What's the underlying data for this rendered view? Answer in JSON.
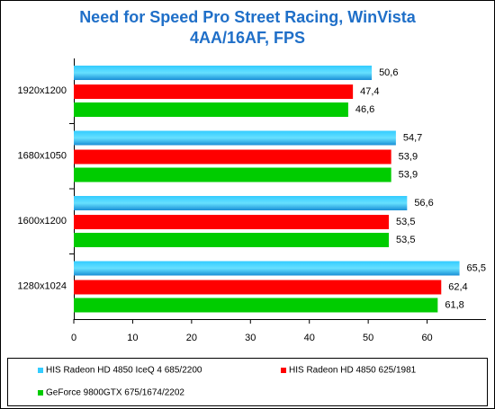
{
  "chart_data": {
    "type": "hbar",
    "title": [
      "Need for Speed Pro Street Racing, WinVista",
      "4AA/16AF, FPS"
    ],
    "categories": [
      "1920x1200",
      "1680x1050",
      "1600x1200",
      "1280x1024"
    ],
    "series": [
      {
        "name": "HIS Radeon HD 4850 IceQ 4 685/2200",
        "color": "#33ccff",
        "values": [
          50.6,
          54.7,
          56.6,
          65.5
        ],
        "value_labels": [
          "50,6",
          "54,7",
          "56,6",
          "65,5"
        ]
      },
      {
        "name": "HIS Radeon HD 4850 625/1981",
        "color": "#ff0000",
        "values": [
          47.4,
          53.9,
          53.5,
          62.4
        ],
        "value_labels": [
          "47,4",
          "53,9",
          "53,5",
          "62,4"
        ]
      },
      {
        "name": "GeForce 9800GTX 675/1674/2202",
        "color": "#00cc00",
        "values": [
          46.6,
          53.9,
          53.5,
          61.8
        ],
        "value_labels": [
          "46,6",
          "53,9",
          "53,5",
          "61,8"
        ]
      }
    ],
    "xlim": [
      0,
      70
    ],
    "xticks": [
      0,
      10,
      20,
      30,
      40,
      50,
      60
    ]
  }
}
